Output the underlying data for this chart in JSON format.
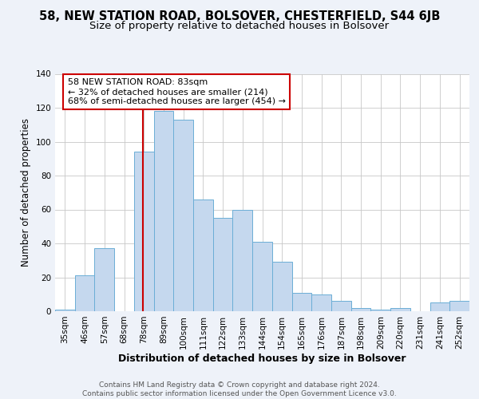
{
  "title": "58, NEW STATION ROAD, BOLSOVER, CHESTERFIELD, S44 6JB",
  "subtitle": "Size of property relative to detached houses in Bolsover",
  "xlabel": "Distribution of detached houses by size in Bolsover",
  "ylabel": "Number of detached properties",
  "footer_line1": "Contains HM Land Registry data © Crown copyright and database right 2024.",
  "footer_line2": "Contains public sector information licensed under the Open Government Licence v3.0.",
  "bin_labels": [
    "35sqm",
    "46sqm",
    "57sqm",
    "68sqm",
    "78sqm",
    "89sqm",
    "100sqm",
    "111sqm",
    "122sqm",
    "133sqm",
    "144sqm",
    "154sqm",
    "165sqm",
    "176sqm",
    "187sqm",
    "198sqm",
    "209sqm",
    "220sqm",
    "231sqm",
    "241sqm",
    "252sqm"
  ],
  "bar_values": [
    1,
    21,
    37,
    0,
    94,
    118,
    113,
    66,
    55,
    60,
    41,
    29,
    11,
    10,
    6,
    2,
    1,
    2,
    0,
    5,
    6
  ],
  "bar_color": "#c5d8ee",
  "bar_edgecolor": "#6baed6",
  "red_line_color": "#cc0000",
  "annotation_text": "58 NEW STATION ROAD: 83sqm\n← 32% of detached houses are smaller (214)\n68% of semi-detached houses are larger (454) →",
  "annotation_box_edgecolor": "#cc0000",
  "annotation_box_facecolor": "#ffffff",
  "ylim": [
    0,
    140
  ],
  "yticks": [
    0,
    20,
    40,
    60,
    80,
    100,
    120,
    140
  ],
  "background_color": "#eef2f9",
  "plot_background": "#ffffff",
  "title_fontsize": 10.5,
  "subtitle_fontsize": 9.5,
  "ylabel_fontsize": 8.5,
  "xlabel_fontsize": 9,
  "tick_fontsize": 7.5,
  "annotation_fontsize": 8,
  "footer_fontsize": 6.5
}
